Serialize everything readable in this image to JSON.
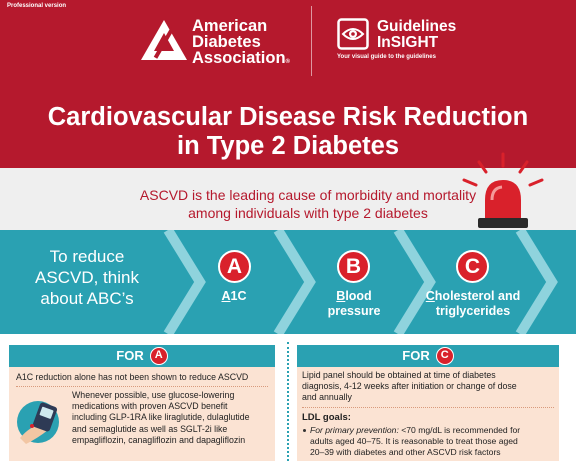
{
  "header": {
    "edition": "Professional version",
    "ada": {
      "line1": "American",
      "line2": "Diabetes",
      "line3": "Association",
      "reg": "®"
    },
    "guidelines": {
      "line1": "Guidelines",
      "line2": "InSIGHT",
      "tagline": "Your visual guide to the guidelines"
    },
    "title_line1": "Cardiovascular Disease Risk Reduction",
    "title_line2": "in Type 2 Diabetes"
  },
  "banner": {
    "line1": "ASCVD is the leading cause of morbidity and mortality",
    "line2": "among individuals with type 2 diabetes"
  },
  "abc": {
    "intro_line1": "To reduce",
    "intro_line2": "ASCVD, think",
    "intro_line3": "about ABC’s",
    "items": [
      {
        "letter": "A",
        "label_initial": "A",
        "label_rest": "1C",
        "label_line2": ""
      },
      {
        "letter": "B",
        "label_initial": "B",
        "label_rest": "lood",
        "label_line2": "pressure"
      },
      {
        "letter": "C",
        "label_initial": "C",
        "label_rest": "holesterol and",
        "label_line2": "triglycerides"
      }
    ]
  },
  "panel_a": {
    "heading": "FOR",
    "letter": "A",
    "line1": "A1C reduction alone has not been shown to reduce ASCVD",
    "body": [
      "Whenever possible, use glucose-lowering",
      "medications with proven ASCVD benefit",
      "including GLP-1RA like liraglutide, dulaglutide",
      "and semaglutide as well as SGLT-2i like",
      "empagliflozin, canagliflozin and dapagliflozin"
    ]
  },
  "panel_c": {
    "heading": "FOR",
    "letter": "C",
    "intro": [
      "Lipid panel should be obtained at time of diabetes",
      "diagnosis, 4-12 weeks after initiation or change of dose",
      "and annually"
    ],
    "ldl_heading": "LDL goals:",
    "ldl_item_label": "For primary prevention:",
    "ldl_item": [
      "<70 mg/dL is recommended for",
      "adults aged 40–75. It is reasonable to treat those aged",
      "20–39 with diabetes and other ASCVD risk factors"
    ]
  },
  "colors": {
    "brand_red": "#b5192d",
    "accent_red": "#d9212b",
    "teal": "#2aa1b2",
    "peach": "#fbe3d3",
    "banner_gray": "#efefef"
  }
}
